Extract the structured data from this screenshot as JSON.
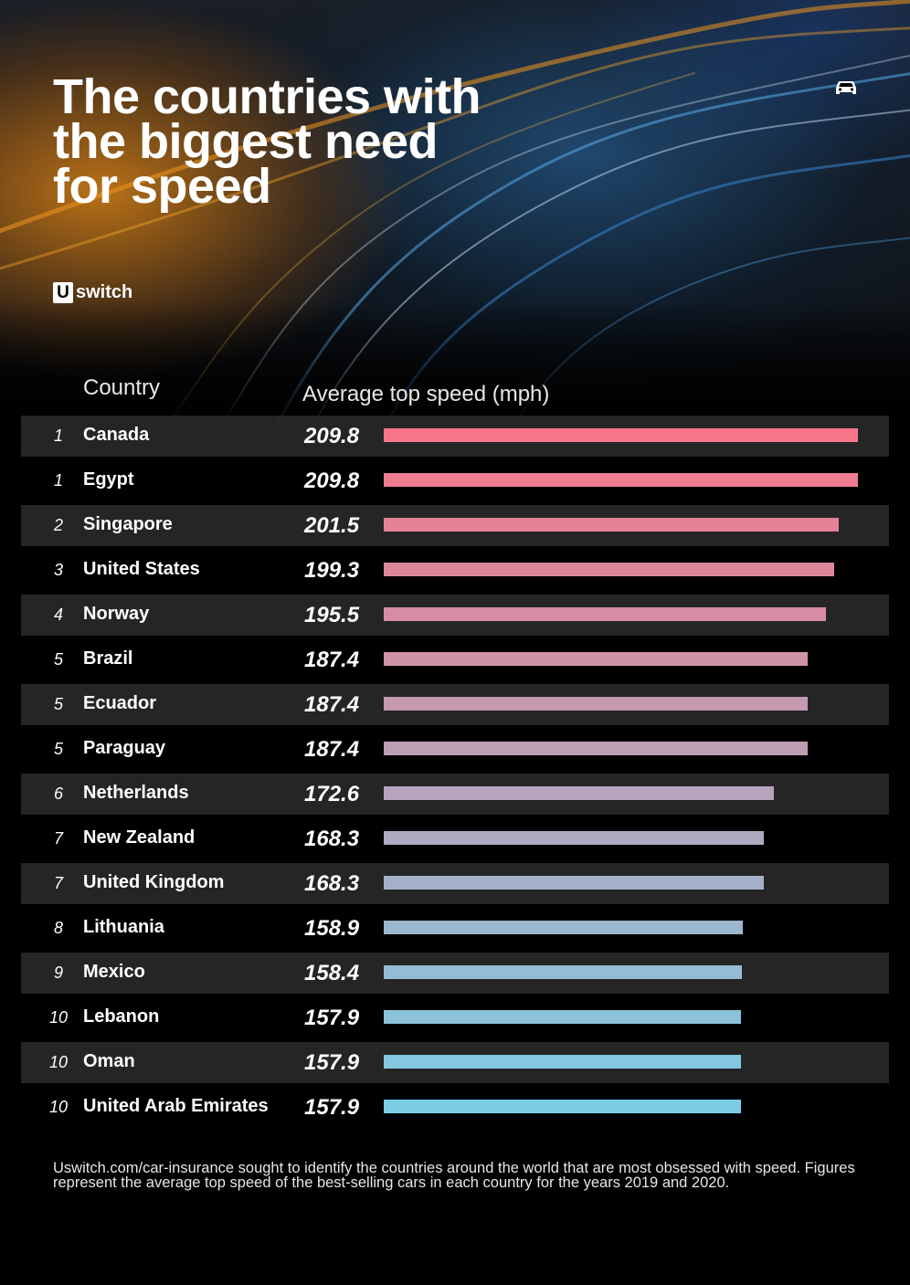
{
  "title_lines": [
    "The countries with",
    "the biggest need",
    "for speed"
  ],
  "brand": {
    "mark": "U",
    "name": "switch"
  },
  "icons": {
    "top_right": "car-icon"
  },
  "chart_data": {
    "type": "bar",
    "orientation": "horizontal",
    "column_headers": {
      "category": "Country",
      "value": "Average top speed (mph)"
    },
    "xlim": [
      0,
      209.8
    ],
    "colors": {
      "top": "#f7768a",
      "bottom": "#7bcde6"
    },
    "rows": [
      {
        "rank": "1",
        "country": "Canada",
        "value": 209.8,
        "label": "209.8"
      },
      {
        "rank": "1",
        "country": "Egypt",
        "value": 209.8,
        "label": "209.8"
      },
      {
        "rank": "2",
        "country": "Singapore",
        "value": 201.5,
        "label": "201.5"
      },
      {
        "rank": "3",
        "country": "United States",
        "value": 199.3,
        "label": "199.3"
      },
      {
        "rank": "4",
        "country": "Norway",
        "value": 195.5,
        "label": "195.5"
      },
      {
        "rank": "5",
        "country": "Brazil",
        "value": 187.4,
        "label": "187.4"
      },
      {
        "rank": "5",
        "country": "Ecuador",
        "value": 187.4,
        "label": "187.4"
      },
      {
        "rank": "5",
        "country": "Paraguay",
        "value": 187.4,
        "label": "187.4"
      },
      {
        "rank": "6",
        "country": "Netherlands",
        "value": 172.6,
        "label": "172.6"
      },
      {
        "rank": "7",
        "country": "New Zealand",
        "value": 168.3,
        "label": "168.3"
      },
      {
        "rank": "7",
        "country": "United Kingdom",
        "value": 168.3,
        "label": "168.3"
      },
      {
        "rank": "8",
        "country": "Lithuania",
        "value": 158.9,
        "label": "158.9"
      },
      {
        "rank": "9",
        "country": "Mexico",
        "value": 158.4,
        "label": "158.4"
      },
      {
        "rank": "10",
        "country": "Lebanon",
        "value": 157.9,
        "label": "157.9"
      },
      {
        "rank": "10",
        "country": "Oman",
        "value": 157.9,
        "label": "157.9"
      },
      {
        "rank": "10",
        "country": "United Arab Emirates",
        "value": 157.9,
        "label": "157.9"
      }
    ]
  },
  "footnote": "Uswitch.com/car-insurance sought to identify the countries around the world that are most obsessed with speed. Figures represent the average top speed of the best-selling cars in each country for the years 2019 and 2020."
}
